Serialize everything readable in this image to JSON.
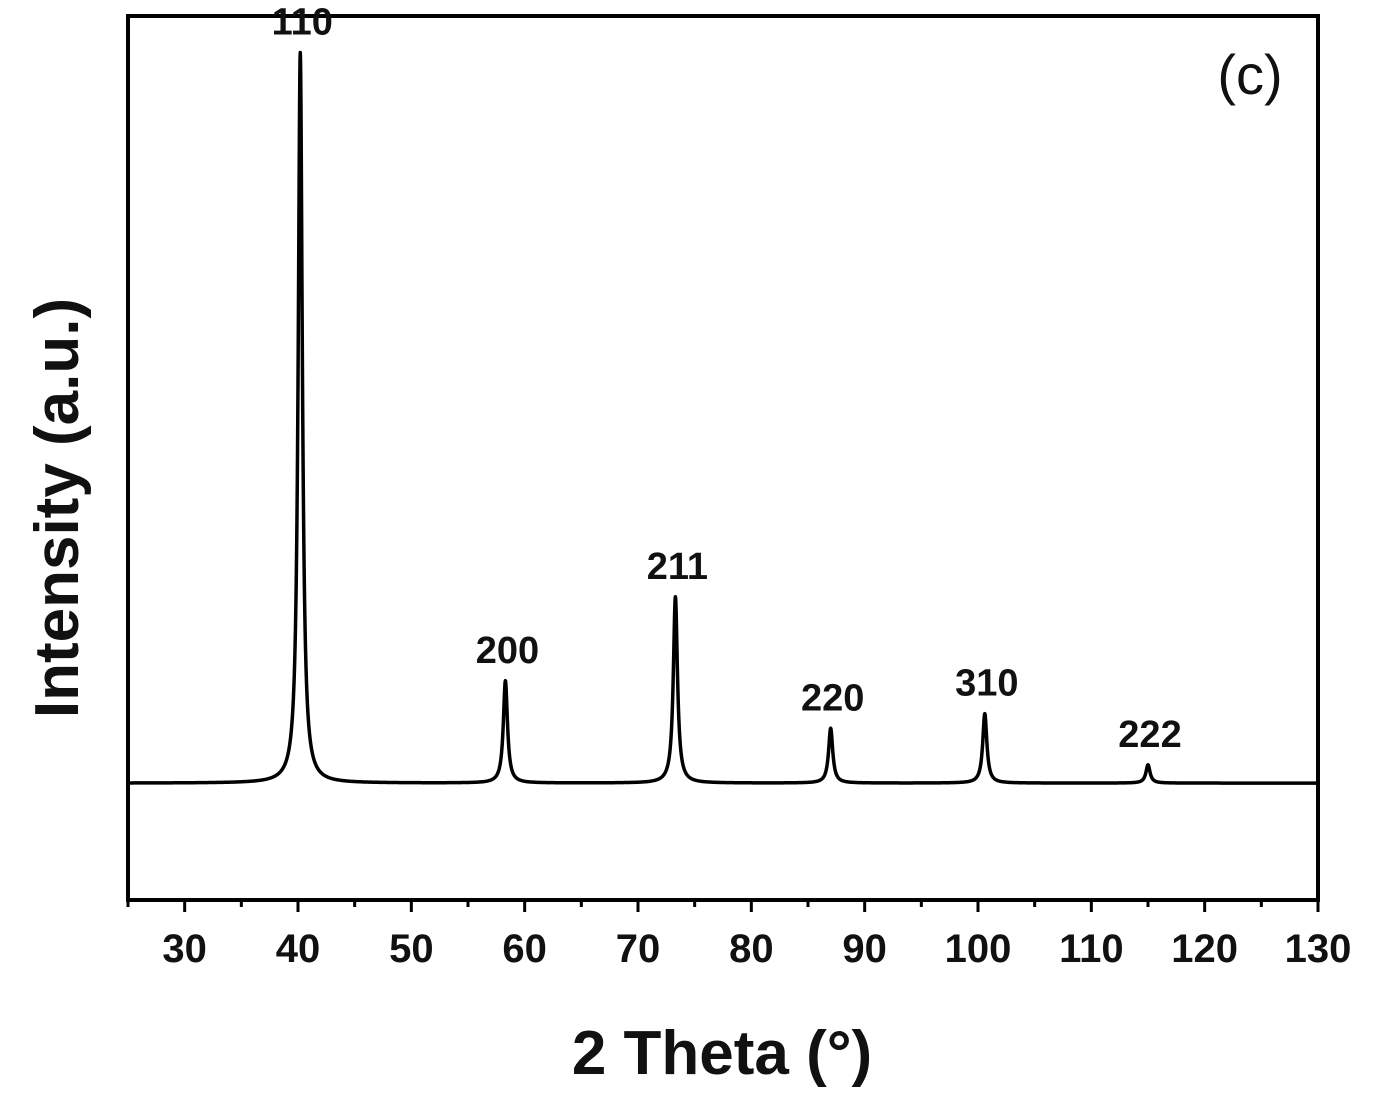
{
  "chart_data": {
    "type": "line",
    "panel_label": "(c)",
    "xlabel": "2 Theta (°)",
    "ylabel": "Intensity (a.u.)",
    "xlim": [
      25,
      130
    ],
    "ylim": [
      -1.6,
      10.5
    ],
    "x_ticks": [
      30,
      40,
      50,
      60,
      70,
      80,
      90,
      100,
      110,
      120,
      130
    ],
    "y_ticks_shown": false,
    "grid": false,
    "line_color": "#000000",
    "baseline": 0,
    "peaks": [
      {
        "label": "110",
        "x": 40.2,
        "y": 10.0
      },
      {
        "label": "200",
        "x": 58.3,
        "y": 1.4
      },
      {
        "label": "211",
        "x": 73.3,
        "y": 2.55
      },
      {
        "label": "220",
        "x": 87.0,
        "y": 0.75
      },
      {
        "label": "310",
        "x": 100.6,
        "y": 0.95
      },
      {
        "label": "222",
        "x": 115.0,
        "y": 0.25
      }
    ]
  }
}
